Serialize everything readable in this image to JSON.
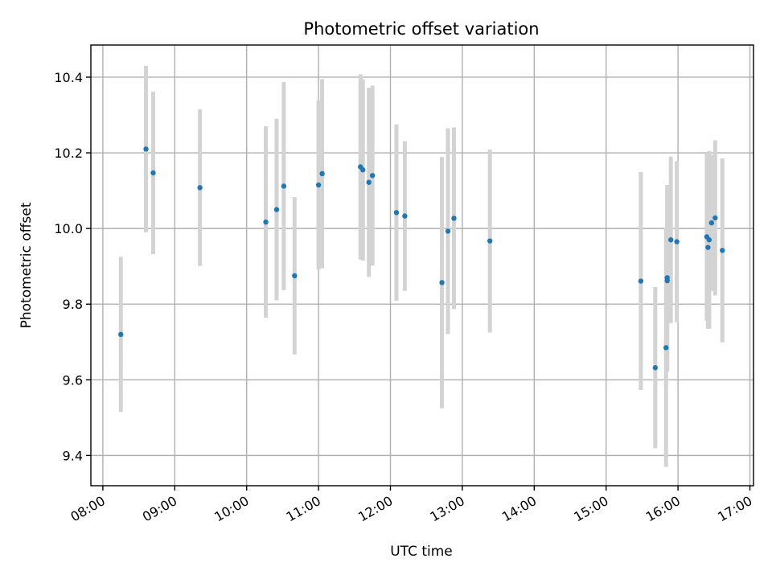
{
  "chart_data": {
    "type": "scatter",
    "title": "Photometric offset variation",
    "xlabel": "UTC time",
    "ylabel": "Photometric offset",
    "x_unit": "hours UTC",
    "xlim": [
      "07:50",
      "17:03"
    ],
    "ylim": [
      9.32,
      10.485
    ],
    "x_ticks": [
      "08:00",
      "09:00",
      "10:00",
      "11:00",
      "12:00",
      "13:00",
      "14:00",
      "15:00",
      "16:00",
      "17:00"
    ],
    "y_ticks": [
      "9.4",
      "9.6",
      "9.8",
      "10.0",
      "10.2",
      "10.4"
    ],
    "grid": true,
    "point_color": "#1f77b4",
    "errorbar_color": "#d3d3d3",
    "points": [
      {
        "x": "08:15",
        "y": 9.72,
        "err": 0.205
      },
      {
        "x": "08:36",
        "y": 10.21,
        "err": 0.22
      },
      {
        "x": "08:42",
        "y": 10.147,
        "err": 0.215
      },
      {
        "x": "09:21",
        "y": 10.108,
        "err": 0.207
      },
      {
        "x": "10:16",
        "y": 10.017,
        "err": 0.253
      },
      {
        "x": "10:25",
        "y": 10.05,
        "err": 0.24
      },
      {
        "x": "10:31",
        "y": 10.112,
        "err": 0.275
      },
      {
        "x": "10:40",
        "y": 9.875,
        "err": 0.208
      },
      {
        "x": "11:00",
        "y": 10.115,
        "err": 0.223
      },
      {
        "x": "11:03",
        "y": 10.145,
        "err": 0.25
      },
      {
        "x": "11:35",
        "y": 10.163,
        "err": 0.245
      },
      {
        "x": "11:37",
        "y": 10.155,
        "err": 0.24
      },
      {
        "x": "11:42",
        "y": 10.122,
        "err": 0.25
      },
      {
        "x": "11:45",
        "y": 10.14,
        "err": 0.238
      },
      {
        "x": "12:05",
        "y": 10.042,
        "err": 0.233
      },
      {
        "x": "12:12",
        "y": 10.033,
        "err": 0.198
      },
      {
        "x": "12:43",
        "y": 9.857,
        "err": 0.332
      },
      {
        "x": "12:48",
        "y": 9.993,
        "err": 0.272
      },
      {
        "x": "12:53",
        "y": 10.027,
        "err": 0.24
      },
      {
        "x": "13:23",
        "y": 9.967,
        "err": 0.242
      },
      {
        "x": "15:29",
        "y": 9.861,
        "err": 0.288
      },
      {
        "x": "15:41",
        "y": 9.632,
        "err": 0.213
      },
      {
        "x": "15:50",
        "y": 9.685,
        "err": 0.315
      },
      {
        "x": "15:51",
        "y": 9.87,
        "err": 0.245
      },
      {
        "x": "15:51",
        "y": 9.862,
        "err": 0.24
      },
      {
        "x": "15:54",
        "y": 9.97,
        "err": 0.22
      },
      {
        "x": "15:59",
        "y": 9.965,
        "err": 0.213
      },
      {
        "x": "16:24",
        "y": 9.978,
        "err": 0.222
      },
      {
        "x": "16:25",
        "y": 9.95,
        "err": 0.215
      },
      {
        "x": "16:26",
        "y": 9.97,
        "err": 0.235
      },
      {
        "x": "16:28",
        "y": 10.015,
        "err": 0.18
      },
      {
        "x": "16:31",
        "y": 10.028,
        "err": 0.205
      },
      {
        "x": "16:37",
        "y": 9.942,
        "err": 0.243
      }
    ]
  }
}
